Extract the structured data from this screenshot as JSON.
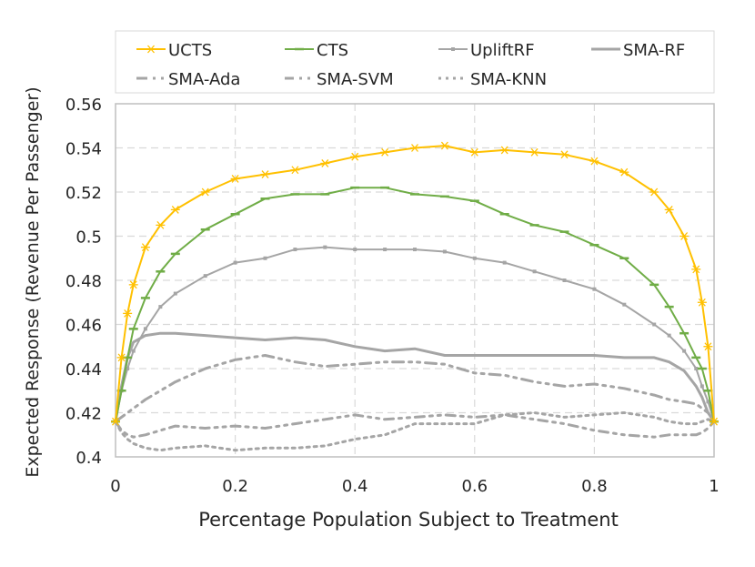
{
  "chart_data": {
    "type": "line",
    "title": "",
    "xlabel": "Percentage Population Subject to Treatment",
    "ylabel": "Expected Response (Revenue Per Passenger)",
    "xlim": [
      0,
      1
    ],
    "ylim": [
      0.4,
      0.56
    ],
    "xticks": [
      "0",
      "0.2",
      "0.4",
      "0.6",
      "0.8",
      "1"
    ],
    "yticks": [
      "0.4",
      "0.42",
      "0.44",
      "0.46",
      "0.48",
      "0.5",
      "0.52",
      "0.54",
      "0.56"
    ],
    "grid": true,
    "legend_position": "top",
    "x": [
      0,
      0.01,
      0.02,
      0.03,
      0.05,
      0.075,
      0.1,
      0.15,
      0.2,
      0.25,
      0.3,
      0.35,
      0.4,
      0.45,
      0.5,
      0.55,
      0.6,
      0.65,
      0.7,
      0.75,
      0.8,
      0.85,
      0.9,
      0.925,
      0.95,
      0.97,
      0.98,
      0.99,
      1
    ],
    "series": [
      {
        "name": "UCTS",
        "color": "#FFC000",
        "style": "solid-asterisk",
        "values": [
          0.416,
          0.445,
          0.465,
          0.478,
          0.495,
          0.505,
          0.512,
          0.52,
          0.526,
          0.528,
          0.53,
          0.533,
          0.536,
          0.538,
          0.54,
          0.541,
          0.538,
          0.539,
          0.538,
          0.537,
          0.534,
          0.529,
          0.52,
          0.512,
          0.5,
          0.485,
          0.47,
          0.45,
          0.416
        ]
      },
      {
        "name": "CTS",
        "color": "#70AD47",
        "style": "solid-dash",
        "values": [
          0.416,
          0.43,
          0.445,
          0.458,
          0.472,
          0.484,
          0.492,
          0.503,
          0.51,
          0.517,
          0.519,
          0.519,
          0.522,
          0.522,
          0.519,
          0.518,
          0.516,
          0.51,
          0.505,
          0.502,
          0.496,
          0.49,
          0.478,
          0.468,
          0.456,
          0.445,
          0.44,
          0.43,
          0.416
        ]
      },
      {
        "name": "UpliftRF",
        "color": "#A5A5A5",
        "style": "solid-square",
        "values": [
          0.416,
          0.43,
          0.44,
          0.448,
          0.458,
          0.468,
          0.474,
          0.482,
          0.488,
          0.49,
          0.494,
          0.495,
          0.494,
          0.494,
          0.494,
          0.493,
          0.49,
          0.488,
          0.484,
          0.48,
          0.476,
          0.469,
          0.46,
          0.455,
          0.448,
          0.44,
          0.432,
          0.425,
          0.416
        ]
      },
      {
        "name": "SMA-RF",
        "color": "#A5A5A5",
        "style": "solid",
        "values": [
          0.416,
          0.432,
          0.445,
          0.452,
          0.455,
          0.456,
          0.456,
          0.455,
          0.454,
          0.453,
          0.454,
          0.453,
          0.45,
          0.448,
          0.449,
          0.446,
          0.446,
          0.446,
          0.446,
          0.446,
          0.446,
          0.445,
          0.445,
          0.443,
          0.439,
          0.432,
          0.427,
          0.42,
          0.416
        ]
      },
      {
        "name": "SMA-Ada",
        "color": "#A5A5A5",
        "style": "long-dash",
        "values": [
          0.416,
          0.418,
          0.42,
          0.422,
          0.426,
          0.43,
          0.434,
          0.44,
          0.444,
          0.446,
          0.443,
          0.441,
          0.442,
          0.443,
          0.443,
          0.442,
          0.438,
          0.437,
          0.434,
          0.432,
          0.433,
          0.431,
          0.428,
          0.426,
          0.425,
          0.424,
          0.422,
          0.42,
          0.416
        ]
      },
      {
        "name": "SMA-SVM",
        "color": "#A5A5A5",
        "style": "dash-dot-dot",
        "values": [
          0.416,
          0.412,
          0.41,
          0.409,
          0.41,
          0.412,
          0.414,
          0.413,
          0.414,
          0.413,
          0.415,
          0.417,
          0.419,
          0.417,
          0.418,
          0.419,
          0.418,
          0.419,
          0.417,
          0.415,
          0.412,
          0.41,
          0.409,
          0.41,
          0.41,
          0.41,
          0.411,
          0.413,
          0.416
        ]
      },
      {
        "name": "SMA-KNN",
        "color": "#A5A5A5",
        "style": "dotted",
        "values": [
          0.416,
          0.411,
          0.408,
          0.406,
          0.404,
          0.403,
          0.404,
          0.405,
          0.403,
          0.404,
          0.404,
          0.405,
          0.408,
          0.41,
          0.415,
          0.415,
          0.415,
          0.419,
          0.42,
          0.418,
          0.419,
          0.42,
          0.418,
          0.416,
          0.415,
          0.415,
          0.416,
          0.417,
          0.416
        ]
      }
    ]
  }
}
